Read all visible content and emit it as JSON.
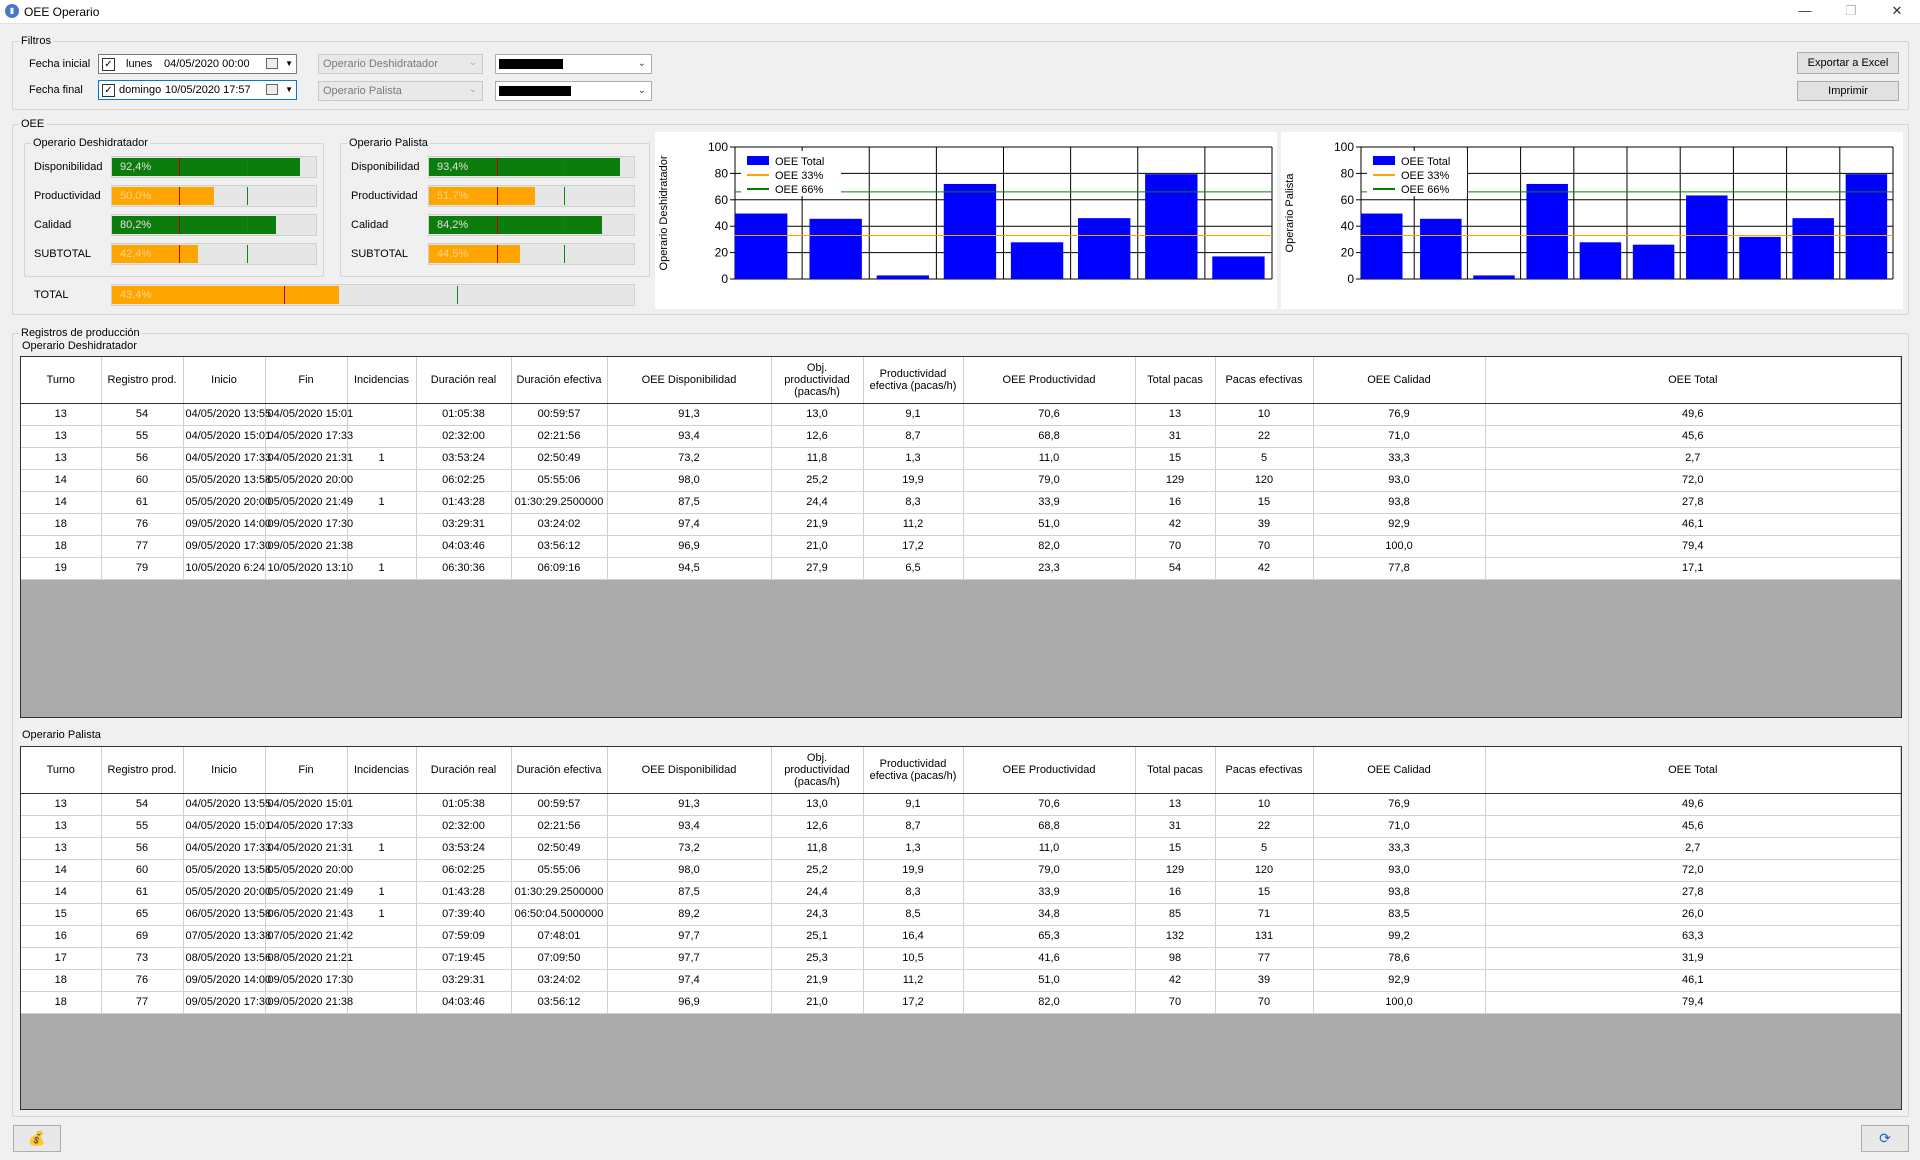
{
  "window": {
    "title": "OEE Operario",
    "icon": "chart-app-icon",
    "minimize": "—",
    "maximize": "❐",
    "close": "✕"
  },
  "filters": {
    "legend": "Filtros",
    "fecha_inicial_label": "Fecha inicial",
    "fecha_final_label": "Fecha final",
    "fecha_inicial_day": "lunes",
    "fecha_inicial_value": "04/05/2020 00:00",
    "fecha_final_day": "domingo",
    "fecha_final_value": "10/05/2020 17:57",
    "combo1_label": "Operario Deshidratador",
    "combo2_label": "Operario Palista",
    "export_label": "Exportar a Excel",
    "print_label": "Imprimir"
  },
  "oee": {
    "legend": "OEE",
    "desh": {
      "legend": "Operario Deshidratador",
      "rows": [
        {
          "label": "Disponibilidad",
          "value": "92,4%",
          "fraction": 0.924,
          "color": "green"
        },
        {
          "label": "Productividad",
          "value": "50,0%",
          "fraction": 0.5,
          "color": "orange"
        },
        {
          "label": "Calidad",
          "value": "80,2%",
          "fraction": 0.802,
          "color": "green"
        },
        {
          "label": "SUBTOTAL",
          "value": "42,4%",
          "fraction": 0.424,
          "color": "orange"
        }
      ]
    },
    "pal": {
      "legend": "Operario Palista",
      "rows": [
        {
          "label": "Disponibilidad",
          "value": "93,4%",
          "fraction": 0.934,
          "color": "green"
        },
        {
          "label": "Productividad",
          "value": "51,7%",
          "fraction": 0.517,
          "color": "orange"
        },
        {
          "label": "Calidad",
          "value": "84,2%",
          "fraction": 0.842,
          "color": "green"
        },
        {
          "label": "SUBTOTAL",
          "value": "44,5%",
          "fraction": 0.445,
          "color": "orange"
        }
      ]
    },
    "total": {
      "label": "TOTAL",
      "value": "43,4%",
      "fraction": 0.434,
      "color": "orange"
    },
    "markers": {
      "red": 0.33,
      "green": 0.66
    }
  },
  "chart_data": [
    {
      "type": "bar",
      "ylabel": "Operario Deshidratador",
      "ylim": [
        0,
        100
      ],
      "yticks": [
        0,
        20,
        40,
        60,
        80,
        100
      ],
      "series": [
        {
          "name": "OEE Total",
          "color": "#0000ff",
          "values": [
            49.6,
            45.6,
            2.7,
            72.0,
            27.8,
            46.1,
            79.4,
            17.1
          ]
        }
      ],
      "lines": [
        {
          "name": "OEE 33%",
          "value": 33,
          "color": "#ffa500"
        },
        {
          "name": "OEE 66%",
          "value": 66,
          "color": "#008000"
        }
      ],
      "legend": "top-left",
      "grid": true
    },
    {
      "type": "bar",
      "ylabel": "Operario Palista",
      "ylim": [
        0,
        100
      ],
      "yticks": [
        0,
        20,
        40,
        60,
        80,
        100
      ],
      "series": [
        {
          "name": "OEE Total",
          "color": "#0000ff",
          "values": [
            49.6,
            45.6,
            2.7,
            72.0,
            27.8,
            26.0,
            63.3,
            31.9,
            46.1,
            79.4
          ]
        }
      ],
      "lines": [
        {
          "name": "OEE 33%",
          "value": 33,
          "color": "#ffa500"
        },
        {
          "name": "OEE 66%",
          "value": 66,
          "color": "#008000"
        }
      ],
      "legend": "top-left",
      "grid": true
    }
  ],
  "registros": {
    "title": "Registros de producción",
    "headers": [
      "Turno",
      "Registro prod.",
      "Inicio",
      "Fin",
      "Incidencias",
      "Duración real",
      "Duración efectiva",
      "OEE Disponibilidad",
      "Obj. productividad (pacas/h)",
      "Productividad efectiva (pacas/h)",
      "OEE Productividad",
      "Total pacas",
      "Pacas efectivas",
      "OEE Calidad",
      "OEE Total"
    ],
    "desh": {
      "title": "Operario Deshidratador",
      "rows": [
        [
          "13",
          "54",
          "04/05/2020 13:55",
          "04/05/2020 15:01",
          "",
          "01:05:38",
          "00:59:57",
          "91,3",
          "13,0",
          "9,1",
          "70,6",
          "13",
          "10",
          "76,9",
          "49,6"
        ],
        [
          "13",
          "55",
          "04/05/2020 15:01",
          "04/05/2020 17:33",
          "",
          "02:32:00",
          "02:21:56",
          "93,4",
          "12,6",
          "8,7",
          "68,8",
          "31",
          "22",
          "71,0",
          "45,6"
        ],
        [
          "13",
          "56",
          "04/05/2020 17:33",
          "04/05/2020 21:31",
          "1",
          "03:53:24",
          "02:50:49",
          "73,2",
          "11,8",
          "1,3",
          "11,0",
          "15",
          "5",
          "33,3",
          "2,7"
        ],
        [
          "14",
          "60",
          "05/05/2020 13:58",
          "05/05/2020 20:00",
          "",
          "06:02:25",
          "05:55:06",
          "98,0",
          "25,2",
          "19,9",
          "79,0",
          "129",
          "120",
          "93,0",
          "72,0"
        ],
        [
          "14",
          "61",
          "05/05/2020 20:00",
          "05/05/2020 21:49",
          "1",
          "01:43:28",
          "01:30:29.2500000",
          "87,5",
          "24,4",
          "8,3",
          "33,9",
          "16",
          "15",
          "93,8",
          "27,8"
        ],
        [
          "18",
          "76",
          "09/05/2020 14:00",
          "09/05/2020 17:30",
          "",
          "03:29:31",
          "03:24:02",
          "97,4",
          "21,9",
          "11,2",
          "51,0",
          "42",
          "39",
          "92,9",
          "46,1"
        ],
        [
          "18",
          "77",
          "09/05/2020 17:30",
          "09/05/2020 21:38",
          "",
          "04:03:46",
          "03:56:12",
          "96,9",
          "21,0",
          "17,2",
          "82,0",
          "70",
          "70",
          "100,0",
          "79,4"
        ],
        [
          "19",
          "79",
          "10/05/2020 6:24",
          "10/05/2020 13:10",
          "1",
          "06:30:36",
          "06:09:16",
          "94,5",
          "27,9",
          "6,5",
          "23,3",
          "54",
          "42",
          "77,8",
          "17,1"
        ]
      ]
    },
    "pal": {
      "title": "Operario Palista",
      "rows": [
        [
          "13",
          "54",
          "04/05/2020 13:55",
          "04/05/2020 15:01",
          "",
          "01:05:38",
          "00:59:57",
          "91,3",
          "13,0",
          "9,1",
          "70,6",
          "13",
          "10",
          "76,9",
          "49,6"
        ],
        [
          "13",
          "55",
          "04/05/2020 15:01",
          "04/05/2020 17:33",
          "",
          "02:32:00",
          "02:21:56",
          "93,4",
          "12,6",
          "8,7",
          "68,8",
          "31",
          "22",
          "71,0",
          "45,6"
        ],
        [
          "13",
          "56",
          "04/05/2020 17:33",
          "04/05/2020 21:31",
          "1",
          "03:53:24",
          "02:50:49",
          "73,2",
          "11,8",
          "1,3",
          "11,0",
          "15",
          "5",
          "33,3",
          "2,7"
        ],
        [
          "14",
          "60",
          "05/05/2020 13:58",
          "05/05/2020 20:00",
          "",
          "06:02:25",
          "05:55:06",
          "98,0",
          "25,2",
          "19,9",
          "79,0",
          "129",
          "120",
          "93,0",
          "72,0"
        ],
        [
          "14",
          "61",
          "05/05/2020 20:00",
          "05/05/2020 21:49",
          "1",
          "01:43:28",
          "01:30:29.2500000",
          "87,5",
          "24,4",
          "8,3",
          "33,9",
          "16",
          "15",
          "93,8",
          "27,8"
        ],
        [
          "15",
          "65",
          "06/05/2020 13:58",
          "06/05/2020 21:43",
          "1",
          "07:39:40",
          "06:50:04.5000000",
          "89,2",
          "24,3",
          "8,5",
          "34,8",
          "85",
          "71",
          "83,5",
          "26,0"
        ],
        [
          "16",
          "69",
          "07/05/2020 13:38",
          "07/05/2020 21:42",
          "",
          "07:59:09",
          "07:48:01",
          "97,7",
          "25,1",
          "16,4",
          "65,3",
          "132",
          "131",
          "99,2",
          "63,3"
        ],
        [
          "17",
          "73",
          "08/05/2020 13:56",
          "08/05/2020 21:21",
          "",
          "07:19:45",
          "07:09:50",
          "97,7",
          "25,3",
          "10,5",
          "41,6",
          "98",
          "77",
          "78,6",
          "31,9"
        ],
        [
          "18",
          "76",
          "09/05/2020 14:00",
          "09/05/2020 17:30",
          "",
          "03:29:31",
          "03:24:02",
          "97,4",
          "21,9",
          "11,2",
          "51,0",
          "42",
          "39",
          "92,9",
          "46,1"
        ],
        [
          "18",
          "77",
          "09/05/2020 17:30",
          "09/05/2020 21:38",
          "",
          "04:03:46",
          "03:56:12",
          "96,9",
          "21,0",
          "17,2",
          "82,0",
          "70",
          "70",
          "100,0",
          "79,4"
        ]
      ]
    }
  },
  "footer": {
    "left_icon": "coins-icon",
    "right_icon": "refresh-icon"
  }
}
